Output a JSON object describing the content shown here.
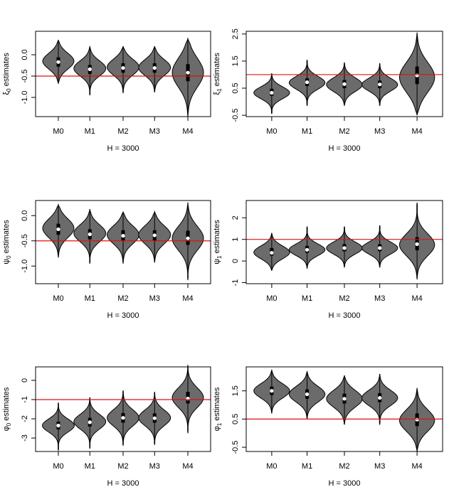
{
  "chart_data": [
    {
      "type": "violin",
      "panel": "top-left",
      "ylabel_symbol": "ξ",
      "ylabel_sub": "0",
      "ylabel_suffix": " estimates",
      "xlabel": "H = 3000",
      "categories": [
        "M0",
        "M1",
        "M2",
        "M3",
        "M4"
      ],
      "ylim": [
        -1.45,
        0.55
      ],
      "yticks": [
        -1.0,
        -0.5,
        0.0
      ],
      "ytick_labels": [
        "-1.0",
        "-0.5",
        "0.0"
      ],
      "ref_line": -0.5,
      "violins": [
        {
          "min": -0.68,
          "max": 0.35,
          "q1": -0.28,
          "q3": -0.06,
          "median": -0.17,
          "mode": -0.15,
          "width": 0.47,
          "skew": 0
        },
        {
          "min": -0.95,
          "max": 0.2,
          "q1": -0.45,
          "q3": -0.24,
          "median": -0.34,
          "mode": -0.32,
          "width": 0.48,
          "skew": 0
        },
        {
          "min": -0.9,
          "max": 0.2,
          "q1": -0.42,
          "q3": -0.2,
          "median": -0.31,
          "mode": -0.29,
          "width": 0.48,
          "skew": 0
        },
        {
          "min": -0.88,
          "max": 0.2,
          "q1": -0.42,
          "q3": -0.2,
          "median": -0.31,
          "mode": -0.3,
          "width": 0.48,
          "skew": 0
        },
        {
          "min": -1.45,
          "max": 0.38,
          "q1": -0.62,
          "q3": -0.22,
          "median": -0.42,
          "mode": -0.42,
          "width": 0.47,
          "skew": 0
        }
      ]
    },
    {
      "type": "violin",
      "panel": "top-right",
      "ylabel_symbol": "ξ",
      "ylabel_sub": "1",
      "ylabel_suffix": " estimates",
      "xlabel": "H = 3000",
      "categories": [
        "M0",
        "M1",
        "M2",
        "M3",
        "M4"
      ],
      "ylim": [
        -0.55,
        2.6
      ],
      "yticks": [
        -0.5,
        0.5,
        1.5,
        2.5
      ],
      "ytick_labels": [
        "-0.5",
        "0.5",
        "1.5",
        "2.5"
      ],
      "ref_line": 1.0,
      "violins": [
        {
          "min": -0.45,
          "max": 1.05,
          "q1": 0.22,
          "q3": 0.48,
          "median": 0.33,
          "mode": 0.33,
          "width": 0.48,
          "skew": 0
        },
        {
          "min": -0.15,
          "max": 1.55,
          "q1": 0.58,
          "q3": 0.86,
          "median": 0.72,
          "mode": 0.7,
          "width": 0.48,
          "skew": 0
        },
        {
          "min": -0.15,
          "max": 1.45,
          "q1": 0.5,
          "q3": 0.8,
          "median": 0.65,
          "mode": 0.63,
          "width": 0.48,
          "skew": 0
        },
        {
          "min": -0.15,
          "max": 1.42,
          "q1": 0.5,
          "q3": 0.78,
          "median": 0.64,
          "mode": 0.63,
          "width": 0.48,
          "skew": 0
        },
        {
          "min": -0.5,
          "max": 2.55,
          "q1": 0.65,
          "q3": 1.3,
          "median": 0.97,
          "mode": 0.9,
          "width": 0.47,
          "skew": 0
        }
      ]
    },
    {
      "type": "violin",
      "panel": "middle-left",
      "ylabel_symbol": "ψ",
      "ylabel_sub": "0",
      "ylabel_suffix": " estimates",
      "xlabel": "H = 3000",
      "categories": [
        "M0",
        "M1",
        "M2",
        "M3",
        "M4"
      ],
      "ylim": [
        -1.35,
        0.3
      ],
      "yticks": [
        -1.0,
        -0.5,
        0.0
      ],
      "ytick_labels": [
        "-1.0",
        "-0.5",
        "0.0"
      ],
      "ref_line": -0.5,
      "violins": [
        {
          "min": -0.83,
          "max": 0.22,
          "q1": -0.38,
          "q3": -0.16,
          "median": -0.27,
          "mode": -0.25,
          "width": 0.47,
          "skew": 0
        },
        {
          "min": -0.95,
          "max": 0.13,
          "q1": -0.47,
          "q3": -0.27,
          "median": -0.37,
          "mode": -0.35,
          "width": 0.48,
          "skew": 0
        },
        {
          "min": -0.95,
          "max": 0.08,
          "q1": -0.5,
          "q3": -0.29,
          "median": -0.4,
          "mode": -0.38,
          "width": 0.48,
          "skew": 0
        },
        {
          "min": -0.93,
          "max": 0.08,
          "q1": -0.5,
          "q3": -0.29,
          "median": -0.39,
          "mode": -0.38,
          "width": 0.48,
          "skew": 0
        },
        {
          "min": -1.28,
          "max": 0.26,
          "q1": -0.58,
          "q3": -0.3,
          "median": -0.45,
          "mode": -0.45,
          "width": 0.47,
          "skew": 0
        }
      ]
    },
    {
      "type": "violin",
      "panel": "middle-right",
      "ylabel_symbol": "ψ",
      "ylabel_sub": "1",
      "ylabel_suffix": " estimates",
      "xlabel": "H = 3000",
      "categories": [
        "M0",
        "M1",
        "M2",
        "M3",
        "M4"
      ],
      "ylim": [
        -1.05,
        2.8
      ],
      "yticks": [
        -1,
        0,
        1,
        2
      ],
      "ytick_labels": [
        "-1",
        "0",
        "1",
        "2"
      ],
      "ref_line": 1.0,
      "violins": [
        {
          "min": -0.45,
          "max": 1.3,
          "q1": 0.25,
          "q3": 0.6,
          "median": 0.38,
          "mode": 0.4,
          "width": 0.48,
          "skew": 0
        },
        {
          "min": -0.35,
          "max": 1.6,
          "q1": 0.38,
          "q3": 0.7,
          "median": 0.52,
          "mode": 0.52,
          "width": 0.48,
          "skew": 0
        },
        {
          "min": -0.3,
          "max": 1.6,
          "q1": 0.45,
          "q3": 0.78,
          "median": 0.6,
          "mode": 0.6,
          "width": 0.48,
          "skew": 0
        },
        {
          "min": -0.3,
          "max": 1.65,
          "q1": 0.45,
          "q3": 0.78,
          "median": 0.6,
          "mode": 0.6,
          "width": 0.48,
          "skew": 0
        },
        {
          "min": -0.85,
          "max": 2.7,
          "q1": 0.5,
          "q3": 1.1,
          "median": 0.78,
          "mode": 0.75,
          "width": 0.47,
          "skew": 0
        }
      ]
    },
    {
      "type": "violin",
      "panel": "bottom-left",
      "ylabel_symbol": "φ",
      "ylabel_sub": "0",
      "ylabel_suffix": " estimates",
      "xlabel": "H = 3000",
      "categories": [
        "M0",
        "M1",
        "M2",
        "M3",
        "M4"
      ],
      "ylim": [
        -3.7,
        0.7
      ],
      "yticks": [
        -3,
        -2,
        -1,
        0
      ],
      "ytick_labels": [
        "-3",
        "-2",
        "-1",
        "0"
      ],
      "ref_line": -1.0,
      "violins": [
        {
          "min": -3.65,
          "max": -1.15,
          "q1": -2.55,
          "q3": -2.15,
          "median": -2.35,
          "mode": -2.35,
          "width": 0.48,
          "skew": 0
        },
        {
          "min": -3.55,
          "max": -0.88,
          "q1": -2.4,
          "q3": -1.95,
          "median": -2.18,
          "mode": -2.15,
          "width": 0.48,
          "skew": 0
        },
        {
          "min": -3.4,
          "max": -0.52,
          "q1": -2.2,
          "q3": -1.7,
          "median": -1.95,
          "mode": -1.95,
          "width": 0.48,
          "skew": 0
        },
        {
          "min": -3.35,
          "max": -0.6,
          "q1": -2.2,
          "q3": -1.72,
          "median": -1.97,
          "mode": -1.95,
          "width": 0.48,
          "skew": 0
        },
        {
          "min": -2.75,
          "max": 0.8,
          "q1": -1.2,
          "q3": -0.6,
          "median": -0.95,
          "mode": -0.9,
          "width": 0.47,
          "skew": 0
        }
      ]
    },
    {
      "type": "violin",
      "panel": "bottom-right",
      "ylabel_symbol": "φ",
      "ylabel_sub": "1",
      "ylabel_suffix": " estimates",
      "xlabel": "H = 3000",
      "categories": [
        "M0",
        "M1",
        "M2",
        "M3",
        "M4"
      ],
      "ylim": [
        -0.65,
        2.35
      ],
      "yticks": [
        -0.5,
        0.5,
        1.5
      ],
      "ytick_labels": [
        "-0.5",
        "0.5",
        "1.5"
      ],
      "ref_line": 0.5,
      "violins": [
        {
          "min": 0.7,
          "max": 2.25,
          "q1": 1.35,
          "q3": 1.65,
          "median": 1.5,
          "mode": 1.5,
          "width": 0.48,
          "skew": 0
        },
        {
          "min": 0.5,
          "max": 2.2,
          "q1": 1.22,
          "q3": 1.55,
          "median": 1.38,
          "mode": 1.38,
          "width": 0.48,
          "skew": 0
        },
        {
          "min": 0.3,
          "max": 2.05,
          "q1": 1.05,
          "q3": 1.4,
          "median": 1.22,
          "mode": 1.22,
          "width": 0.48,
          "skew": 0
        },
        {
          "min": 0.3,
          "max": 2.1,
          "q1": 1.1,
          "q3": 1.42,
          "median": 1.25,
          "mode": 1.25,
          "width": 0.48,
          "skew": 0
        },
        {
          "min": -0.65,
          "max": 1.6,
          "q1": 0.25,
          "q3": 0.7,
          "median": 0.48,
          "mode": 0.45,
          "width": 0.47,
          "skew": 0
        }
      ]
    }
  ],
  "colors": {
    "violin_fill": "#6b6b6b",
    "violin_stroke": "#000000",
    "ref_line": "#e01010",
    "median_dot": "#ffffff",
    "box": "#000000",
    "axis": "#000000"
  }
}
